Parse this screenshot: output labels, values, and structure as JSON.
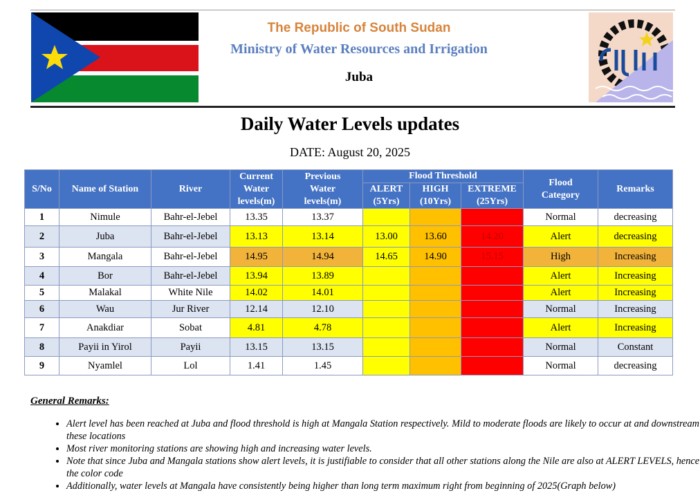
{
  "header": {
    "line1": "The Republic of South Sudan",
    "line2": "Ministry of Water Resources and Irrigation",
    "line3": "Juba"
  },
  "doc": {
    "title": "Daily Water Levels updates",
    "date": "DATE: August 20, 2025"
  },
  "table": {
    "headers": {
      "sno": "S/No",
      "station": "Name of Station",
      "river": "River",
      "current": [
        "Current",
        "Water",
        "levels(m)"
      ],
      "previous": [
        "Previous",
        "Water",
        "levels(m)"
      ],
      "threshold": "Flood Threshold",
      "alert": [
        "ALERT",
        "(5Yrs)"
      ],
      "high": [
        "HIGH",
        "(10Yrs)"
      ],
      "extreme": [
        "EXTREME",
        "(25Yrs)"
      ],
      "category": [
        "Flood",
        "Category"
      ],
      "remarks": "Remarks"
    },
    "rows": [
      {
        "sno": "1",
        "station": "Nimule",
        "river": "Bahr-el-Jebel",
        "current": "13.35",
        "previous": "13.37",
        "alert": "",
        "high": "",
        "extreme": "",
        "category": "Normal",
        "remarks": "decreasing"
      },
      {
        "sno": "2",
        "station": "Juba",
        "river": "Bahr-el-Jebel",
        "current": "13.13",
        "previous": "13.14",
        "alert": "13.00",
        "high": "13.60",
        "extreme": "14.20",
        "category": "Alert",
        "remarks": "decreasing"
      },
      {
        "sno": "3",
        "station": "Mangala",
        "river": "Bahr-el-Jebel",
        "current": "14.95",
        "previous": "14.94",
        "alert": "14.65",
        "high": "14.90",
        "extreme": "15.15",
        "category": "High",
        "remarks": "Increasing"
      },
      {
        "sno": "4",
        "station": "Bor",
        "river": "Bahr-el-Jebel",
        "current": "13.94",
        "previous": "13.89",
        "alert": "",
        "high": "",
        "extreme": "",
        "category": "Alert",
        "remarks": "Increasing"
      },
      {
        "sno": "5",
        "station": "Malakal",
        "river": "White Nile",
        "current": "14.02",
        "previous": "14.01",
        "alert": "",
        "high": "",
        "extreme": "",
        "category": "Alert",
        "remarks": "Increasing"
      },
      {
        "sno": "6",
        "station": "Wau",
        "river": "Jur River",
        "current": "12.14",
        "previous": "12.10",
        "alert": "",
        "high": "",
        "extreme": "",
        "category": "Normal",
        "remarks": "Increasing"
      },
      {
        "sno": "7",
        "station": "Anakdiar",
        "river": "Sobat",
        "current": "4.81",
        "previous": "4.78",
        "alert": "",
        "high": "",
        "extreme": "",
        "category": "Alert",
        "remarks": "Increasing"
      },
      {
        "sno": "8",
        "station": "Payii in Yirol",
        "river": "Payii",
        "current": "13.15",
        "previous": "13.15",
        "alert": "",
        "high": "",
        "extreme": "",
        "category": "Normal",
        "remarks": "Constant"
      },
      {
        "sno": "9",
        "station": "Nyamlel",
        "river": "Lol",
        "current": "1.41",
        "previous": "1.45",
        "alert": "",
        "high": "",
        "extreme": "",
        "category": "Normal",
        "remarks": "decreasing"
      }
    ]
  },
  "remarks": {
    "title": "General Remarks:",
    "items": [
      "Alert level has been reached at Juba and flood threshold is high at Mangala Station respectively. Mild to moderate floods are likely to occur at and downstream of these locations",
      "Most river monitoring stations are showing high and increasing water levels.",
      "Note that since Juba and Mangala stations show alert levels, it is justifiable to consider that all other stations along the Nile are also at ALERT LEVELS, hence the color code",
      "Additionally, water levels at Mangala have consistently being higher than long term maximum right from beginning of 2025(Graph below)"
    ]
  },
  "colors": {
    "header_blue": "#4472c4",
    "alert_yellow": "#ffff00",
    "high_orange": "#ffc000",
    "extreme_red": "#ff0000",
    "flag_black": "#000000",
    "flag_red": "#da121a",
    "flag_green": "#078930",
    "flag_blue": "#0f47af",
    "flag_star": "#fcdd09"
  }
}
